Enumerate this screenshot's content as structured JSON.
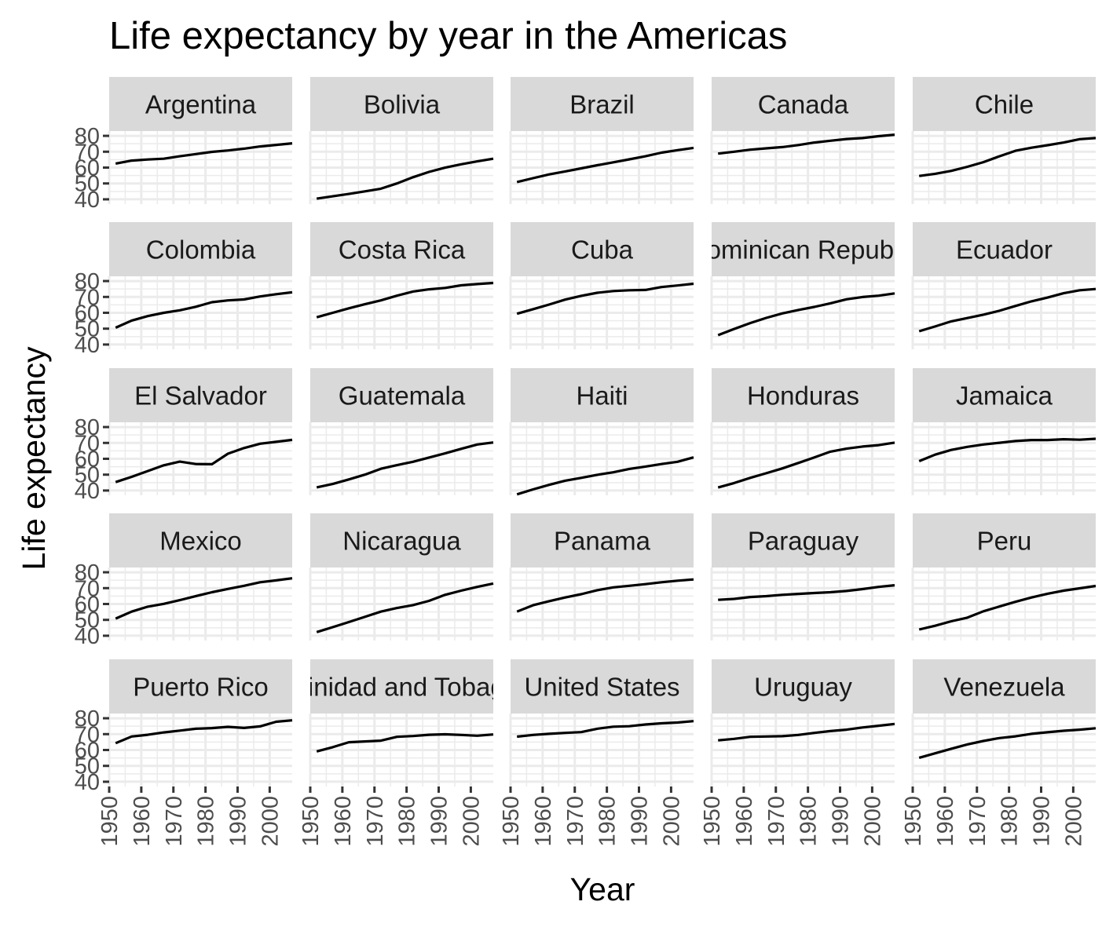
{
  "chart_data": {
    "type": "line",
    "layout": "facet_wrap",
    "title": "Life expectancy by year in the Americas",
    "xlabel": "Year",
    "ylabel": "Life expectancy",
    "xlim": [
      1950,
      2007
    ],
    "ylim": [
      37,
      83
    ],
    "x_ticks": [
      1950,
      1960,
      1970,
      1980,
      1990,
      2000
    ],
    "y_ticks": [
      40,
      50,
      60,
      70,
      80
    ],
    "grid": true,
    "line_color": "#000000",
    "panel_background": "#ffffff",
    "grid_color": "#ebebeb",
    "strip_background": "#d9d9d9",
    "x": [
      1952,
      1957,
      1962,
      1967,
      1972,
      1977,
      1982,
      1987,
      1992,
      1997,
      2002,
      2007
    ],
    "series": [
      {
        "name": "Argentina",
        "values": [
          62.5,
          64.4,
          65.1,
          65.6,
          67.1,
          68.5,
          69.9,
          70.8,
          71.9,
          73.3,
          74.3,
          75.3
        ]
      },
      {
        "name": "Bolivia",
        "values": [
          40.4,
          41.9,
          43.4,
          45.0,
          46.7,
          50.0,
          53.9,
          57.3,
          59.96,
          62.1,
          63.9,
          65.6
        ]
      },
      {
        "name": "Brazil",
        "values": [
          50.9,
          53.3,
          55.7,
          57.6,
          59.5,
          61.5,
          63.3,
          65.2,
          67.1,
          69.4,
          71.0,
          72.4
        ]
      },
      {
        "name": "Canada",
        "values": [
          68.8,
          70.0,
          71.3,
          72.1,
          72.9,
          74.2,
          75.8,
          76.9,
          78.0,
          78.6,
          79.8,
          80.7
        ]
      },
      {
        "name": "Chile",
        "values": [
          54.7,
          56.1,
          57.9,
          60.5,
          63.4,
          67.1,
          70.6,
          72.5,
          74.1,
          75.8,
          77.9,
          78.6
        ]
      },
      {
        "name": "Colombia",
        "values": [
          50.6,
          55.1,
          57.9,
          60.0,
          61.6,
          63.8,
          66.7,
          67.8,
          68.4,
          70.3,
          71.7,
          72.9
        ]
      },
      {
        "name": "Costa Rica",
        "values": [
          57.2,
          60.0,
          62.8,
          65.4,
          67.8,
          70.8,
          73.4,
          74.8,
          75.7,
          77.3,
          78.1,
          78.8
        ]
      },
      {
        "name": "Cuba",
        "values": [
          59.4,
          62.3,
          65.2,
          68.3,
          70.7,
          72.6,
          73.7,
          74.2,
          74.4,
          76.2,
          77.2,
          78.3
        ]
      },
      {
        "name": "Dominican Republic",
        "values": [
          45.9,
          49.8,
          53.5,
          56.8,
          59.6,
          61.8,
          63.7,
          66.0,
          68.5,
          69.96,
          70.8,
          72.2
        ]
      },
      {
        "name": "Ecuador",
        "values": [
          48.4,
          51.4,
          54.6,
          56.7,
          58.8,
          61.3,
          64.3,
          67.2,
          69.6,
          72.3,
          74.2,
          74.99
        ]
      },
      {
        "name": "El Salvador",
        "values": [
          45.3,
          48.6,
          52.3,
          55.9,
          58.2,
          56.7,
          56.6,
          63.2,
          66.8,
          69.5,
          70.7,
          71.9
        ]
      },
      {
        "name": "Guatemala",
        "values": [
          42.0,
          44.1,
          47.0,
          50.0,
          53.7,
          56.0,
          58.1,
          60.8,
          63.4,
          66.3,
          68.98,
          70.3
        ]
      },
      {
        "name": "Haiti",
        "values": [
          37.6,
          40.7,
          43.6,
          46.2,
          48.0,
          49.9,
          51.5,
          53.6,
          55.1,
          56.7,
          58.1,
          60.9
        ]
      },
      {
        "name": "Honduras",
        "values": [
          41.9,
          44.7,
          48.0,
          50.9,
          53.9,
          57.4,
          60.9,
          64.5,
          66.4,
          67.7,
          68.6,
          70.2
        ]
      },
      {
        "name": "Jamaica",
        "values": [
          58.5,
          62.6,
          65.6,
          67.5,
          69.0,
          70.1,
          71.2,
          71.8,
          71.8,
          72.3,
          72.0,
          72.6
        ]
      },
      {
        "name": "Mexico",
        "values": [
          50.8,
          55.2,
          58.3,
          60.1,
          62.4,
          65.0,
          67.4,
          69.5,
          71.5,
          73.7,
          74.9,
          76.2
        ]
      },
      {
        "name": "Nicaragua",
        "values": [
          42.3,
          45.4,
          48.6,
          51.9,
          55.2,
          57.5,
          59.3,
          62.0,
          65.8,
          68.4,
          70.8,
          72.9
        ]
      },
      {
        "name": "Panama",
        "values": [
          55.2,
          59.2,
          61.8,
          64.1,
          66.2,
          68.7,
          70.5,
          71.5,
          72.5,
          73.7,
          74.7,
          75.5
        ]
      },
      {
        "name": "Paraguay",
        "values": [
          62.6,
          63.2,
          64.4,
          64.95,
          65.8,
          66.4,
          66.9,
          67.4,
          68.2,
          69.4,
          70.8,
          71.8
        ]
      },
      {
        "name": "Peru",
        "values": [
          43.9,
          46.3,
          49.1,
          51.4,
          55.4,
          58.4,
          61.4,
          64.1,
          66.5,
          68.4,
          69.9,
          71.4
        ]
      },
      {
        "name": "Puerto Rico",
        "values": [
          64.3,
          68.5,
          69.6,
          71.1,
          72.2,
          73.4,
          73.8,
          74.6,
          73.9,
          74.9,
          77.8,
          78.7
        ]
      },
      {
        "name": "Trinidad and Tobago",
        "values": [
          59.1,
          61.8,
          64.9,
          65.4,
          65.9,
          68.3,
          68.8,
          69.6,
          69.9,
          69.5,
          68.98,
          69.8
        ]
      },
      {
        "name": "United States",
        "values": [
          68.4,
          69.5,
          70.2,
          70.8,
          71.3,
          73.4,
          74.7,
          75.0,
          76.1,
          76.8,
          77.3,
          78.2
        ]
      },
      {
        "name": "Uruguay",
        "values": [
          66.1,
          67.0,
          68.3,
          68.5,
          68.7,
          69.5,
          70.8,
          71.9,
          72.8,
          74.2,
          75.3,
          76.4
        ]
      },
      {
        "name": "Venezuela",
        "values": [
          55.1,
          57.9,
          60.8,
          63.5,
          65.7,
          67.5,
          68.6,
          70.2,
          71.2,
          72.1,
          72.8,
          73.7
        ]
      }
    ]
  }
}
